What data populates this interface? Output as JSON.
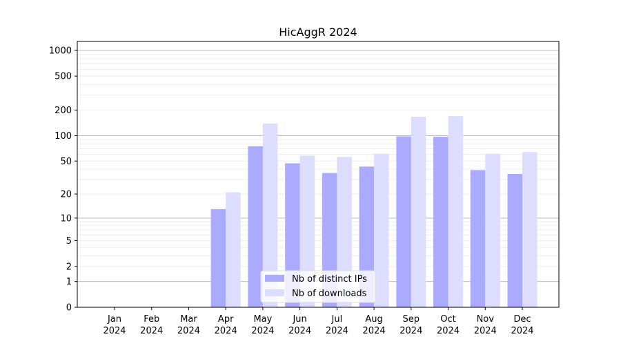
{
  "chart_data": {
    "type": "bar",
    "title": "HicAggR 2024",
    "xlabel": "",
    "ylabel": "",
    "yscale": "log(1+y)",
    "ylim": [
      0,
      1200
    ],
    "yticks": [
      0,
      1,
      2,
      5,
      10,
      20,
      50,
      100,
      200,
      500,
      1000
    ],
    "categories": [
      "Jan\n2024",
      "Feb\n2024",
      "Mar\n2024",
      "Apr\n2024",
      "May\n2024",
      "Jun\n2024",
      "Jul\n2024",
      "Aug\n2024",
      "Sep\n2024",
      "Oct\n2024",
      "Nov\n2024",
      "Dec\n2024"
    ],
    "series": [
      {
        "name": "Nb of distinct IPs",
        "color": "#aaaaff",
        "values": [
          0,
          0,
          0,
          13,
          75,
          47,
          36,
          43,
          98,
          97,
          39,
          35
        ]
      },
      {
        "name": "Nb of downloads",
        "color": "#ddddff",
        "values": [
          0,
          0,
          0,
          21,
          139,
          58,
          56,
          61,
          167,
          170,
          61,
          64
        ]
      }
    ],
    "grid": true,
    "legend": "lower-center"
  }
}
